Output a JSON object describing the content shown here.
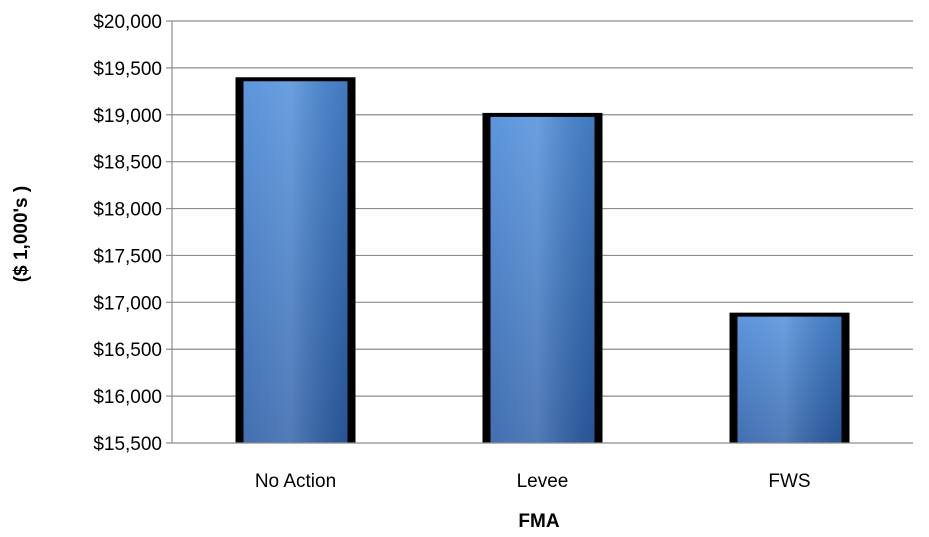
{
  "chart_data": {
    "type": "bar",
    "title": "",
    "xlabel": "FMA",
    "ylabel": "($ 1,000's )",
    "categories": [
      "No Action",
      "Levee",
      "FWS"
    ],
    "values": [
      19400,
      19020,
      16890
    ],
    "ylim": [
      15500,
      20000
    ],
    "ytick_step": 500,
    "ytick_labels": [
      "$15,500",
      "$16,000",
      "$16,500",
      "$17,000",
      "$17,500",
      "$18,000",
      "$18,500",
      "$19,000",
      "$19,500",
      "$20,000"
    ],
    "grid": true,
    "legend": "none",
    "colors": {
      "bar_fill_top": "#4a8ad8",
      "bar_fill_bottom": "#2c5fa8",
      "bar_border": "#000000",
      "grid": "#8c8c8c",
      "axis": "#8c8c8c",
      "text": "#000000"
    }
  }
}
